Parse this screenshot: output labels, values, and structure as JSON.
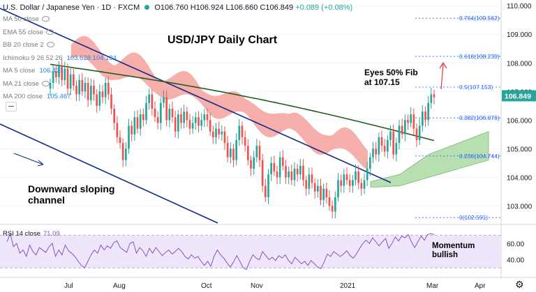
{
  "header": {
    "symbol": "U.S. Dollar / Japanese Yen · 1D · FXCM",
    "ohlc": "O106.760 H106.924 L106.660 C106.849",
    "change": "+0.089 (+0.08%)"
  },
  "indicators": [
    {
      "label": "MA 50 close",
      "value": ""
    },
    {
      "label": "EMA 55 close",
      "value": ""
    },
    {
      "label": "BB 20 close 2",
      "value": ""
    },
    {
      "label": "Ichimoku 9 26 52 26",
      "value": "103.628 104.134"
    },
    {
      "label": "MA 5 close",
      "value": "106.421"
    },
    {
      "label": "MA 21 close",
      "value": ""
    },
    {
      "label": "MA 200 close",
      "value": "105.467"
    }
  ],
  "rsi": {
    "label": "RSI 14 close",
    "value": "71.09"
  },
  "colors": {
    "up": "#26a69a",
    "down": "#ef5350",
    "channel": "#0d2b8c",
    "ma200": "#1b5e20",
    "cloud_bear": "#f6a6a2",
    "cloud_bull": "#b7dfb0",
    "fib": "#2962ff",
    "rsi": "#7e57c2",
    "rsi_band": "#f0e6fb",
    "price_tag": "#26a69a"
  },
  "icons": [
    "eye-icon",
    "gear-icon",
    "collapse-icon",
    "live-dot-icon"
  ],
  "chart_data": {
    "type": "candlestick",
    "title": "USD/JPY Daily Chart",
    "xlabel": "",
    "ylabel": "",
    "x_tick_labels": [
      "Jul",
      "Aug",
      "Oct",
      "Nov",
      "2021",
      "Mar",
      "Apr"
    ],
    "y_ticks": [
      103.0,
      104.0,
      105.0,
      106.0,
      107.0,
      108.0,
      109.0,
      110.0
    ],
    "y_tick_labels": [
      "103.000",
      "104.000",
      "105.000",
      "106.000",
      "107.000",
      "108.000",
      "109.000",
      "110.000"
    ],
    "ylim": [
      102.4,
      110.2
    ],
    "last_price": 106.849,
    "last_price_label": "106.849",
    "fib_levels": [
      {
        "label": "0.764(109.562)",
        "value": 109.562
      },
      {
        "label": "0.618(108.230)",
        "value": 108.23
      },
      {
        "label": "0.5(107.153)",
        "value": 107.153
      },
      {
        "label": "0.382(106.076)",
        "value": 106.076
      },
      {
        "label": "0.236(104.744)",
        "value": 104.744
      },
      {
        "label": "0(102.591)",
        "value": 102.591
      }
    ],
    "closes": [
      107.3,
      107.7,
      107.5,
      107.9,
      107.4,
      107.8,
      107.1,
      107.6,
      107.2,
      106.9,
      107.4,
      107.0,
      107.3,
      106.7,
      107.2,
      106.9,
      106.5,
      107.0,
      106.8,
      107.3,
      106.9,
      106.4,
      105.9,
      105.4,
      105.2,
      104.6,
      105.0,
      105.8,
      105.5,
      106.1,
      105.7,
      106.2,
      106.0,
      106.6,
      106.9,
      106.4,
      106.1,
      105.9,
      106.6,
      106.8,
      106.0,
      106.4,
      106.1,
      105.6,
      106.2,
      105.9,
      106.3,
      106.0,
      105.7,
      105.9,
      106.1,
      105.8,
      106.0,
      106.2,
      106.0,
      105.6,
      105.4,
      105.7,
      105.5,
      105.6,
      105.2,
      104.7,
      105.0,
      104.6,
      105.3,
      105.8,
      105.4,
      105.1,
      104.6,
      104.3,
      104.7,
      105.1,
      104.6,
      103.7,
      103.3,
      104.1,
      104.5,
      104.2,
      104.0,
      104.7,
      104.4,
      104.0,
      104.2,
      103.9,
      104.3,
      104.1,
      104.4,
      103.9,
      103.6,
      104.1,
      103.8,
      103.5,
      103.7,
      103.2,
      103.6,
      103.3,
      103.0,
      102.8,
      103.3,
      103.9,
      103.7,
      104.1,
      103.9,
      103.7,
      103.9,
      104.2,
      103.8,
      103.6,
      103.9,
      104.3,
      104.7,
      105.0,
      104.8,
      105.4,
      105.1,
      104.9,
      105.3,
      105.6,
      104.8,
      105.2,
      105.8,
      105.5,
      106.0,
      105.9,
      106.2,
      105.7,
      105.3,
      105.8,
      106.3,
      106.0,
      106.6,
      106.9,
      106.8
    ]
  },
  "annotations": {
    "fib_note": "Eyes 50% Fib\nat 107.15",
    "channel_note": "Downward sloping\nchannel",
    "momentum_note": "Momentum\nbullish"
  },
  "rsi_panel": {
    "y_tick_labels": [
      "60.00",
      "40.00"
    ],
    "y_ticks": [
      60,
      40
    ],
    "upper_band": 70,
    "lower_band": 30,
    "values": [
      62,
      72,
      56,
      60,
      48,
      52,
      44,
      58,
      50,
      46,
      55,
      52,
      49,
      56,
      60,
      44,
      52,
      46,
      58,
      51,
      48,
      44,
      38,
      33,
      30,
      38,
      46,
      52,
      48,
      58,
      52,
      57,
      54,
      61,
      63,
      55,
      52,
      49,
      60,
      62,
      48,
      55,
      51,
      44,
      54,
      48,
      55,
      50,
      45,
      49,
      52,
      47,
      50,
      54,
      50,
      44,
      41,
      46,
      42,
      44,
      38,
      33,
      38,
      32,
      44,
      52,
      46,
      42,
      36,
      31,
      37,
      45,
      38,
      30,
      28,
      38,
      46,
      42,
      40,
      50,
      45,
      40,
      43,
      39,
      45,
      42,
      46,
      39,
      35,
      43,
      39,
      35,
      38,
      33,
      39,
      35,
      31,
      29,
      37,
      47,
      44,
      50,
      47,
      44,
      47,
      51,
      45,
      42,
      47,
      54,
      60,
      64,
      60,
      67,
      62,
      57,
      62,
      66,
      54,
      60,
      68,
      63,
      69,
      67,
      71,
      62,
      55,
      62,
      69,
      64,
      71,
      72,
      71
    ]
  }
}
